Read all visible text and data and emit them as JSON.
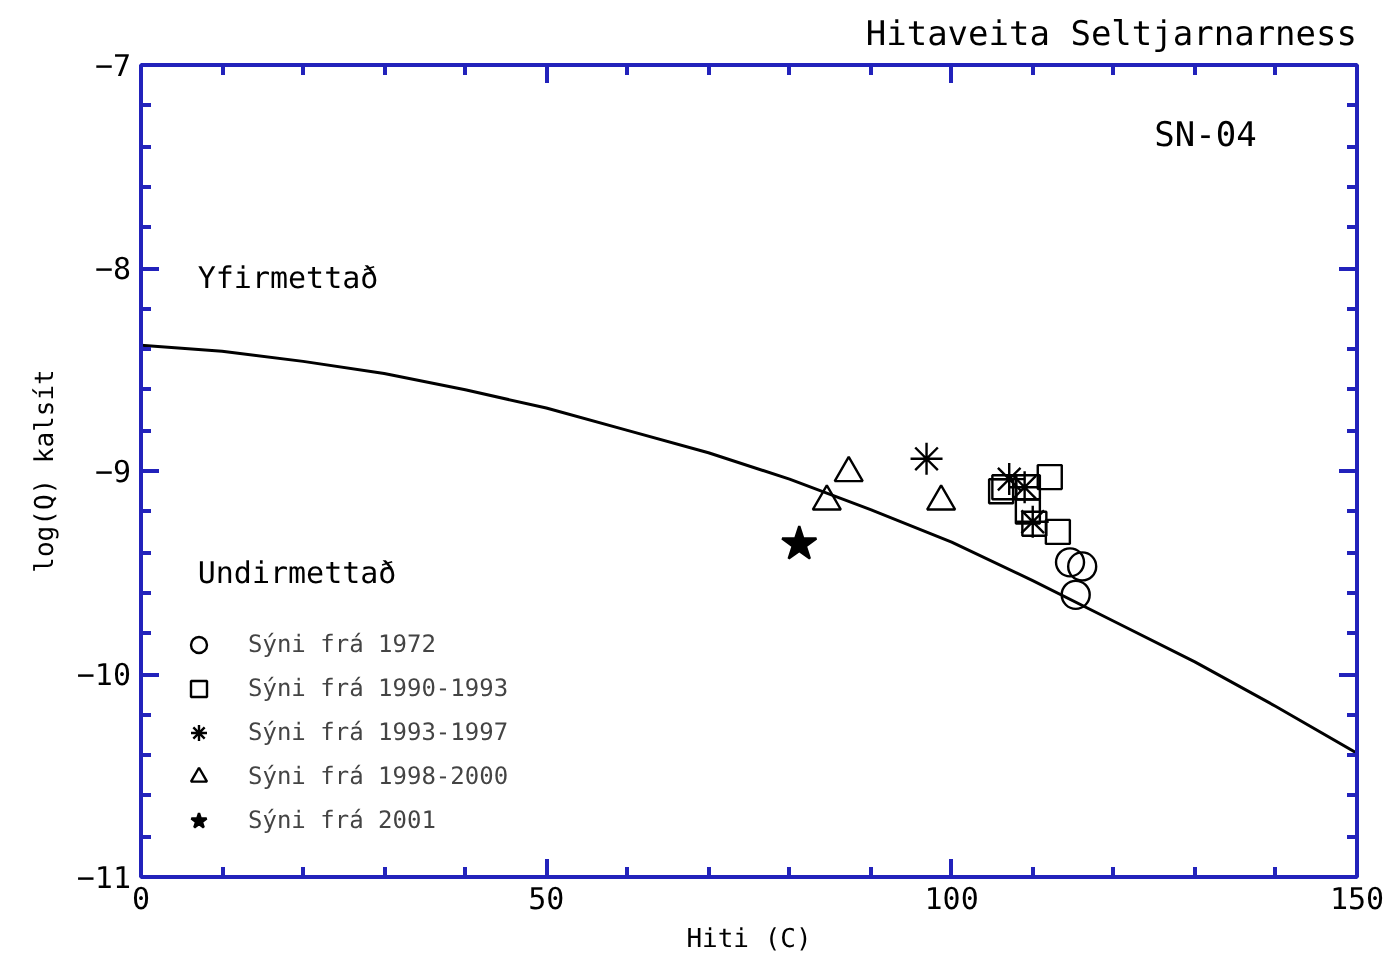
{
  "chart_data": {
    "type": "scatter",
    "title": "Hitaveita Seltjarnarness",
    "xlabel": "Hiti (C)",
    "ylabel": "log(Q) kalsít",
    "annotations": [
      "SN-04",
      "Yfirmettað",
      "Undirmettað"
    ],
    "xlim": [
      0,
      150
    ],
    "ylim": [
      -11,
      -7
    ],
    "xticks": [
      0,
      {
        "value": 10,
        "label": null
      },
      {
        "value": 20,
        "label": null
      },
      {
        "value": 30,
        "label": null
      },
      {
        "value": 40,
        "label": null
      },
      50,
      {
        "value": 60,
        "label": null
      },
      {
        "value": 70,
        "label": null
      },
      {
        "value": 80,
        "label": null
      },
      {
        "value": 90,
        "label": null
      },
      100,
      {
        "value": 110,
        "label": null
      },
      {
        "value": 120,
        "label": null
      },
      {
        "value": 130,
        "label": null
      },
      {
        "value": 140,
        "label": null
      },
      150
    ],
    "yticks": [
      -7,
      {
        "value": -7.2,
        "label": null
      },
      {
        "value": -7.4,
        "label": null
      },
      {
        "value": -7.6,
        "label": null
      },
      {
        "value": -7.8,
        "label": null
      },
      -8,
      {
        "value": -8.2,
        "label": null
      },
      {
        "value": -8.4,
        "label": null
      },
      {
        "value": -8.6,
        "label": null
      },
      {
        "value": -8.8,
        "label": null
      },
      -9,
      {
        "value": -9.2,
        "label": null
      },
      {
        "value": -9.4,
        "label": null
      },
      {
        "value": -9.6,
        "label": null
      },
      {
        "value": -9.8,
        "label": null
      },
      -10,
      {
        "value": -10.2,
        "label": null
      },
      {
        "value": -10.4,
        "label": null
      },
      {
        "value": -10.6,
        "label": null
      },
      {
        "value": -10.8,
        "label": null
      },
      -11
    ],
    "grid": false,
    "legend": "bottom left",
    "series": [
      {
        "type": "line",
        "color": "#000000",
        "line_style": "solid",
        "x": [
          0,
          10,
          20,
          30,
          40,
          50,
          60,
          70,
          80,
          90,
          100,
          110,
          120,
          130,
          140,
          150
        ],
        "values": [
          -8.38,
          -8.41,
          -8.46,
          -8.52,
          -8.6,
          -8.69,
          -8.8,
          -8.91,
          -9.04,
          -9.19,
          -9.35,
          -9.54,
          -9.74,
          -9.94,
          -10.16,
          -10.39
        ]
      },
      {
        "name": "Sýni frá 1972",
        "color": "#000000",
        "marker": "circle",
        "x": [
          114.6,
          116.1,
          115.3
        ],
        "values": [
          -9.45,
          -9.47,
          -9.61
        ]
      },
      {
        "name": "Sýni frá 1990-1993",
        "color": "#000000",
        "marker": "square",
        "x": [
          106.1,
          106.5,
          109.4,
          112.1,
          109.4,
          110.2,
          113.1
        ],
        "values": [
          -9.1,
          -9.08,
          -9.08,
          -9.03,
          -9.2,
          -9.26,
          -9.3
        ]
      },
      {
        "name": "Sýni frá 1993-1997",
        "color": "#000000",
        "marker": "cross",
        "x": [
          96.9,
          107.1,
          109.0,
          110.0
        ],
        "values": [
          -8.94,
          -9.04,
          -9.08,
          -9.25
        ]
      },
      {
        "name": "Sýni frá 1998-2000",
        "color": "#000000",
        "marker": "triangle",
        "x": [
          87.3,
          84.6,
          98.7
        ],
        "values": [
          -9.01,
          -9.15,
          -9.15
        ]
      },
      {
        "name": "Sýni frá 2001",
        "color": "#000000",
        "marker": "star",
        "x": [
          81.2
        ],
        "values": [
          -9.36
        ]
      }
    ]
  }
}
